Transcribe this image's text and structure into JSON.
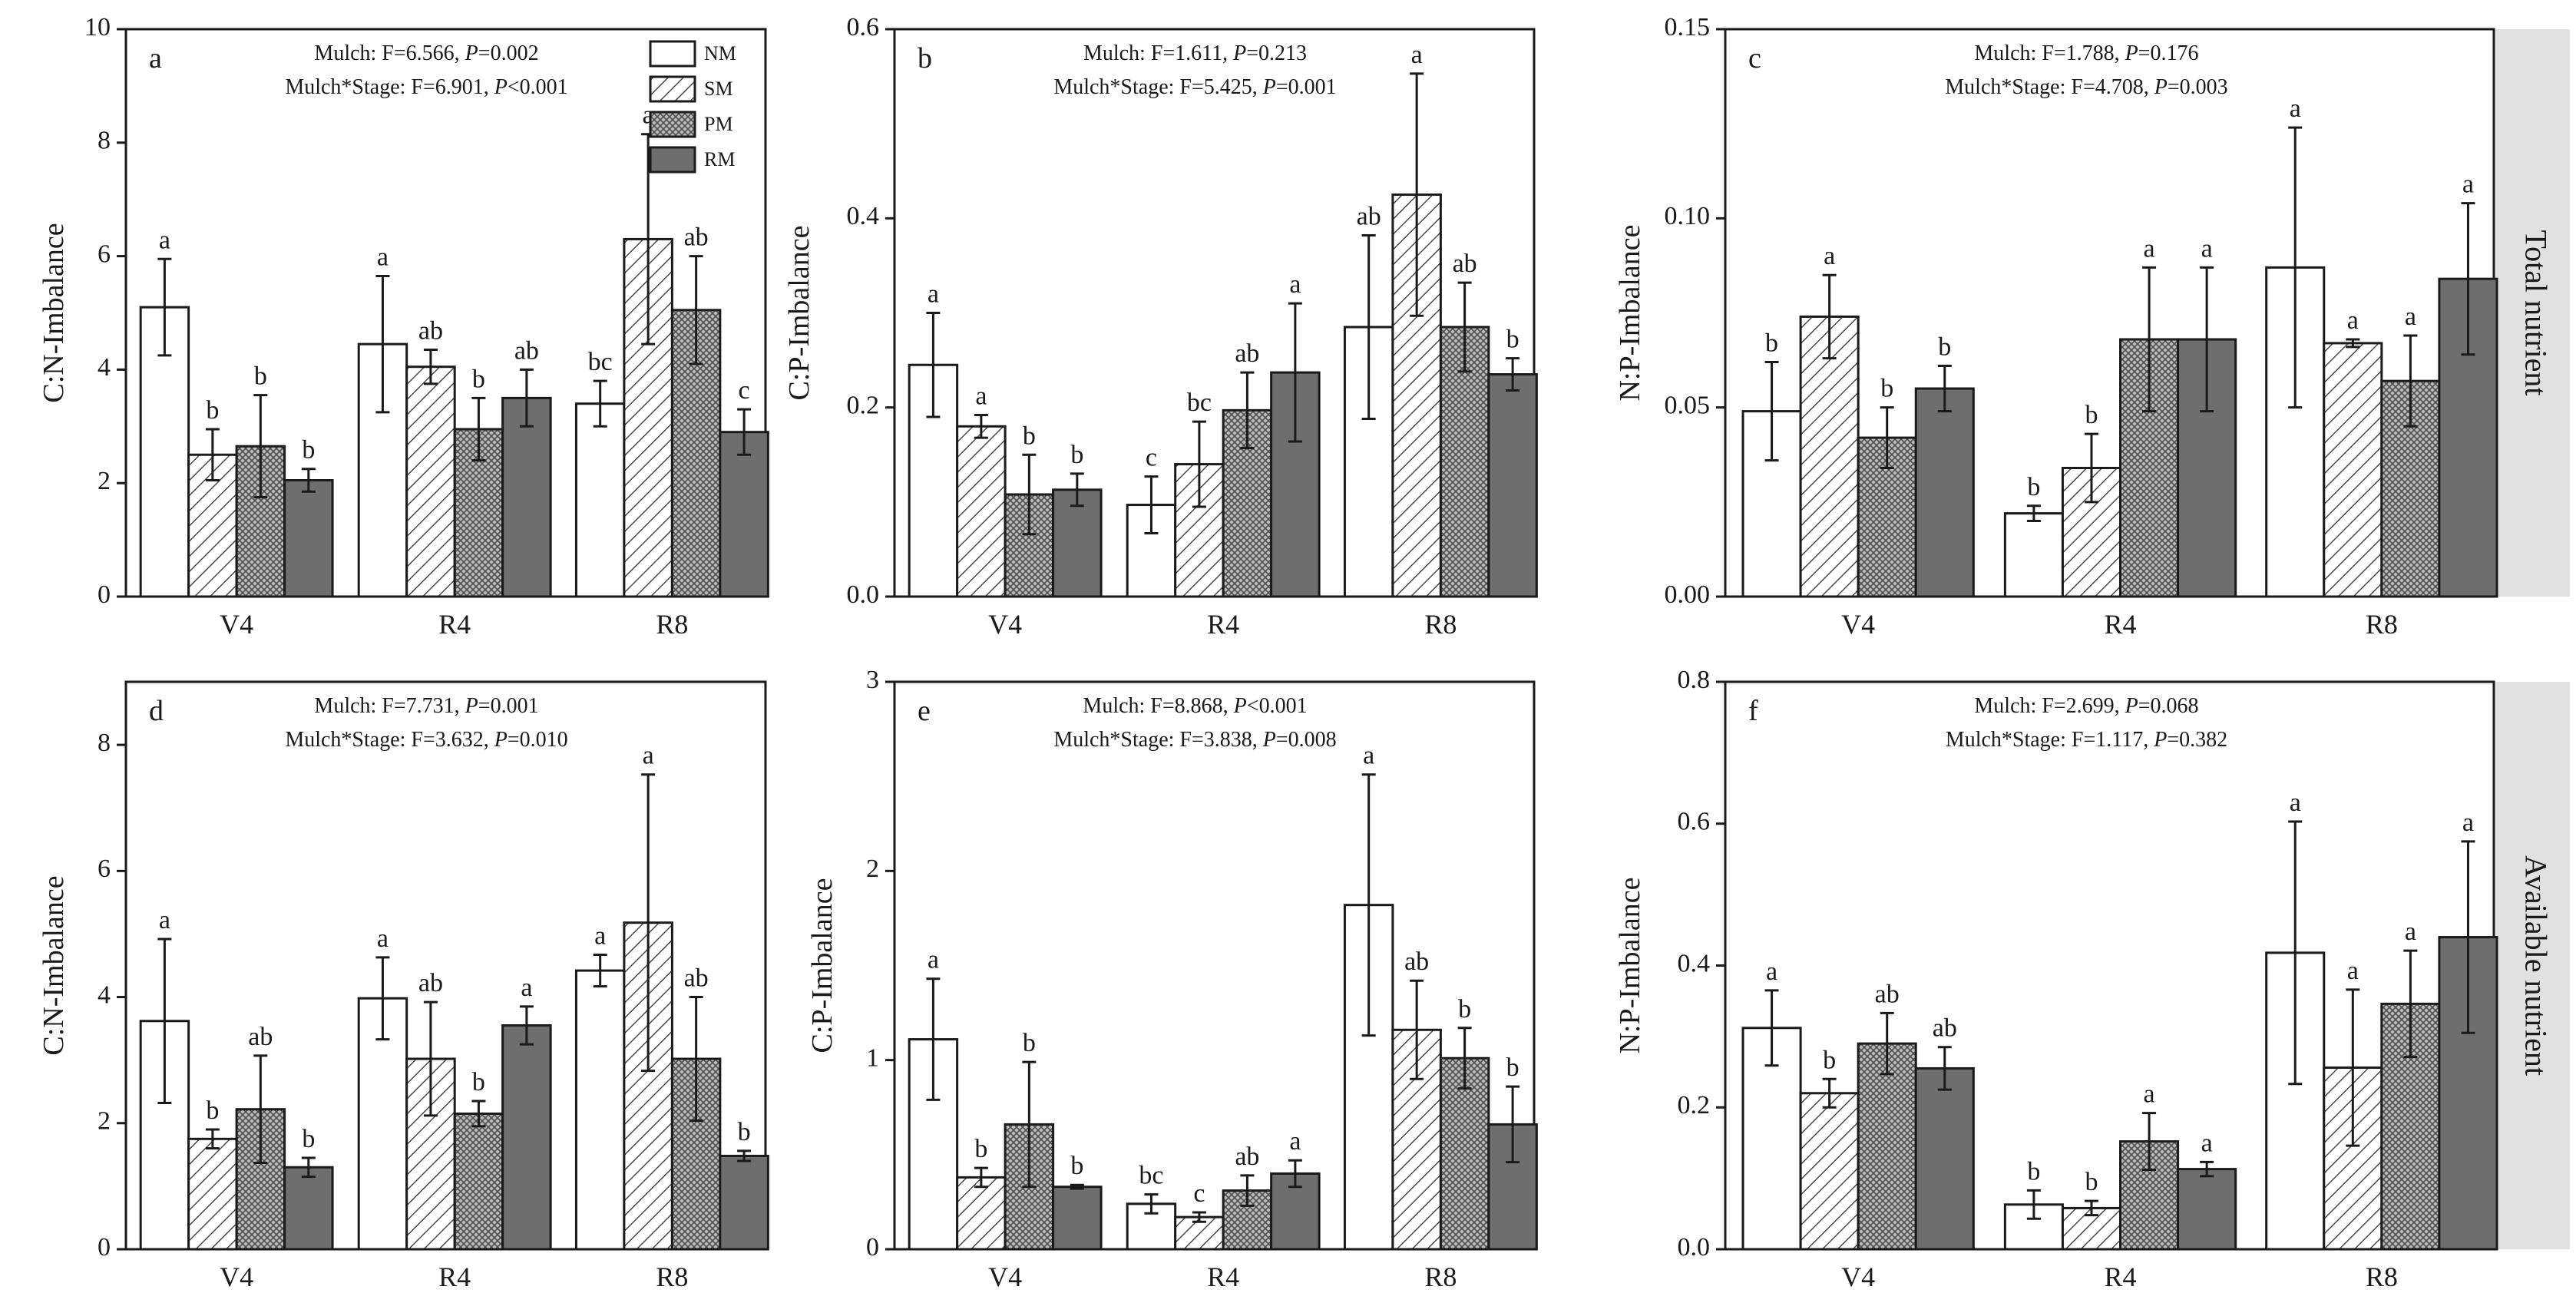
{
  "legend": [
    "NM",
    "SM",
    "PM",
    "RM"
  ],
  "row_labels": [
    "Total nutrient",
    "Available nutrient"
  ],
  "colors": {
    "bar_outline": "#1a1a1a",
    "rm_fill": "#6e6e6e",
    "side_band": "#e1e1e1"
  },
  "chart_data": [
    {
      "panel": "a",
      "type": "bar",
      "ylabel": "C:N-Imbalance",
      "ylim": [
        0,
        10
      ],
      "yticks": [
        "0",
        "2",
        "4",
        "6",
        "8",
        "10"
      ],
      "categories": [
        "V4",
        "R4",
        "R8"
      ],
      "stats": [
        {
          "pre": "Mulch: F=6.566, ",
          "p": "P",
          "post": "=0.002"
        },
        {
          "pre": "Mulch*Stage: F=6.901, ",
          "p": "P",
          "post": "<0.001"
        }
      ],
      "series": [
        {
          "name": "NM",
          "values": [
            5.1,
            4.45,
            3.4
          ],
          "errors": [
            0.85,
            1.2,
            0.4
          ],
          "letters": [
            "a",
            "a",
            "bc"
          ]
        },
        {
          "name": "SM",
          "values": [
            2.5,
            4.05,
            6.3
          ],
          "errors": [
            0.45,
            0.3,
            1.85
          ],
          "letters": [
            "b",
            "ab",
            "a"
          ]
        },
        {
          "name": "PM",
          "values": [
            2.65,
            2.95,
            5.05
          ],
          "errors": [
            0.9,
            0.55,
            0.95
          ],
          "letters": [
            "b",
            "b",
            "ab"
          ]
        },
        {
          "name": "RM",
          "values": [
            2.05,
            3.5,
            2.9
          ],
          "errors": [
            0.2,
            0.5,
            0.4
          ],
          "letters": [
            "b",
            "ab",
            "c"
          ]
        }
      ]
    },
    {
      "panel": "b",
      "type": "bar",
      "ylabel": "C:P-Imbalance",
      "ylim": [
        0,
        0.6
      ],
      "yticks": [
        "0.0",
        "0.2",
        "0.4",
        "0.6"
      ],
      "categories": [
        "V4",
        "R4",
        "R8"
      ],
      "stats": [
        {
          "pre": "Mulch: F=1.611, ",
          "p": "P",
          "post": "=0.213"
        },
        {
          "pre": "Mulch*Stage: F=5.425, ",
          "p": "P",
          "post": "=0.001"
        }
      ],
      "series": [
        {
          "name": "NM",
          "values": [
            0.245,
            0.097,
            0.285
          ],
          "errors": [
            0.055,
            0.03,
            0.097
          ],
          "letters": [
            "a",
            "c",
            "ab"
          ]
        },
        {
          "name": "SM",
          "values": [
            0.18,
            0.14,
            0.425
          ],
          "errors": [
            0.012,
            0.045,
            0.128
          ],
          "letters": [
            "a",
            "bc",
            "a"
          ]
        },
        {
          "name": "PM",
          "values": [
            0.108,
            0.197,
            0.285
          ],
          "errors": [
            0.042,
            0.04,
            0.047
          ],
          "letters": [
            "b",
            "ab",
            "ab"
          ]
        },
        {
          "name": "RM",
          "values": [
            0.113,
            0.237,
            0.235
          ],
          "errors": [
            0.017,
            0.073,
            0.017
          ],
          "letters": [
            "b",
            "a",
            "b"
          ]
        }
      ]
    },
    {
      "panel": "c",
      "type": "bar",
      "ylabel": "N:P-Imbalance",
      "ylim": [
        0,
        0.15
      ],
      "yticks": [
        "0.00",
        "0.05",
        "0.10",
        "0.15"
      ],
      "categories": [
        "V4",
        "R4",
        "R8"
      ],
      "stats": [
        {
          "pre": "Mulch: F=1.788, ",
          "p": "P",
          "post": "=0.176"
        },
        {
          "pre": "Mulch*Stage: F=4.708, ",
          "p": "P",
          "post": "=0.003"
        }
      ],
      "series": [
        {
          "name": "NM",
          "values": [
            0.049,
            0.022,
            0.087
          ],
          "errors": [
            0.013,
            0.002,
            0.037
          ],
          "letters": [
            "b",
            "b",
            "a"
          ]
        },
        {
          "name": "SM",
          "values": [
            0.074,
            0.034,
            0.067
          ],
          "errors": [
            0.011,
            0.009,
            0.001
          ],
          "letters": [
            "a",
            "b",
            "a"
          ]
        },
        {
          "name": "PM",
          "values": [
            0.042,
            0.068,
            0.057
          ],
          "errors": [
            0.008,
            0.019,
            0.012
          ],
          "letters": [
            "b",
            "a",
            "a"
          ]
        },
        {
          "name": "RM",
          "values": [
            0.055,
            0.068,
            0.084
          ],
          "errors": [
            0.006,
            0.019,
            0.02
          ],
          "letters": [
            "b",
            "a",
            "a"
          ]
        }
      ]
    },
    {
      "panel": "d",
      "type": "bar",
      "ylabel": "C:N-Imbalance",
      "ylim": [
        0,
        9
      ],
      "yticks": [
        "0",
        "2",
        "4",
        "6",
        "8"
      ],
      "categories": [
        "V4",
        "R4",
        "R8"
      ],
      "stats": [
        {
          "pre": "Mulch: F=7.731, ",
          "p": "P",
          "post": "=0.001"
        },
        {
          "pre": "Mulch*Stage: F=3.632, ",
          "p": "P",
          "post": "=0.010"
        }
      ],
      "series": [
        {
          "name": "NM",
          "values": [
            3.62,
            3.98,
            4.42
          ],
          "errors": [
            1.3,
            0.65,
            0.25
          ],
          "letters": [
            "a",
            "a",
            "a"
          ]
        },
        {
          "name": "SM",
          "values": [
            1.75,
            3.02,
            5.18
          ],
          "errors": [
            0.15,
            0.9,
            2.35
          ],
          "letters": [
            "b",
            "ab",
            "a"
          ]
        },
        {
          "name": "PM",
          "values": [
            2.22,
            2.15,
            3.02
          ],
          "errors": [
            0.85,
            0.2,
            0.98
          ],
          "letters": [
            "ab",
            "b",
            "ab"
          ]
        },
        {
          "name": "RM",
          "values": [
            1.3,
            3.55,
            1.48
          ],
          "errors": [
            0.15,
            0.3,
            0.08
          ],
          "letters": [
            "b",
            "a",
            "b"
          ]
        }
      ]
    },
    {
      "panel": "e",
      "type": "bar",
      "ylabel": "C:P-Imbalance",
      "ylim": [
        0,
        3
      ],
      "yticks": [
        "0",
        "1",
        "2",
        "3"
      ],
      "categories": [
        "V4",
        "R4",
        "R8"
      ],
      "stats": [
        {
          "pre": "Mulch: F=8.868, ",
          "p": "P",
          "post": "<0.001"
        },
        {
          "pre": "Mulch*Stage: F=3.838, ",
          "p": "P",
          "post": "=0.008"
        }
      ],
      "series": [
        {
          "name": "NM",
          "values": [
            1.11,
            0.24,
            1.82
          ],
          "errors": [
            0.32,
            0.05,
            0.69
          ],
          "letters": [
            "a",
            "bc",
            "a"
          ]
        },
        {
          "name": "SM",
          "values": [
            0.38,
            0.17,
            1.16
          ],
          "errors": [
            0.05,
            0.025,
            0.26
          ],
          "letters": [
            "b",
            "c",
            "ab"
          ]
        },
        {
          "name": "PM",
          "values": [
            0.66,
            0.31,
            1.01
          ],
          "errors": [
            0.33,
            0.08,
            0.16
          ],
          "letters": [
            "b",
            "ab",
            "b"
          ]
        },
        {
          "name": "RM",
          "values": [
            0.33,
            0.4,
            0.66
          ],
          "errors": [
            0.01,
            0.07,
            0.2
          ],
          "letters": [
            "b",
            "a",
            "b"
          ]
        }
      ]
    },
    {
      "panel": "f",
      "type": "bar",
      "ylabel": "N:P-Imbalance",
      "ylim": [
        0,
        0.8
      ],
      "yticks": [
        "0.0",
        "0.2",
        "0.4",
        "0.6",
        "0.8"
      ],
      "categories": [
        "V4",
        "R4",
        "R8"
      ],
      "stats": [
        {
          "pre": "Mulch: F=2.699, ",
          "p": "P",
          "post": "=0.068"
        },
        {
          "pre": "Mulch*Stage: F=1.117, ",
          "p": "P",
          "post": "=0.382"
        }
      ],
      "series": [
        {
          "name": "NM",
          "values": [
            0.312,
            0.063,
            0.418
          ],
          "errors": [
            0.053,
            0.02,
            0.185
          ],
          "letters": [
            "a",
            "b",
            "a"
          ]
        },
        {
          "name": "SM",
          "values": [
            0.22,
            0.058,
            0.256
          ],
          "errors": [
            0.02,
            0.01,
            0.11
          ],
          "letters": [
            "b",
            "b",
            "a"
          ]
        },
        {
          "name": "PM",
          "values": [
            0.29,
            0.152,
            0.346
          ],
          "errors": [
            0.043,
            0.04,
            0.075
          ],
          "letters": [
            "ab",
            "a",
            "a"
          ]
        },
        {
          "name": "RM",
          "values": [
            0.255,
            0.113,
            0.44
          ],
          "errors": [
            0.03,
            0.01,
            0.135
          ],
          "letters": [
            "ab",
            "a",
            "a"
          ]
        }
      ]
    }
  ]
}
